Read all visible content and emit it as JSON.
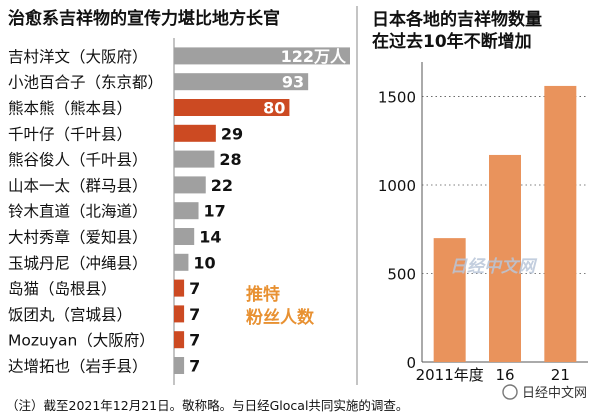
{
  "chart_data": [
    {
      "type": "bar",
      "orientation": "horizontal",
      "title": "治愈系吉祥物的宣传力堪比地方长官",
      "categories": [
        "吉村洋文（大阪府）",
        "小池百合子（东京都）",
        "熊本熊（熊本县）",
        "千叶仔（千叶县）",
        "熊谷俊人（千叶县）",
        "山本一太（群马县）",
        "铃木直道（北海道）",
        "大村秀章（爱知县）",
        "玉城丹尼（冲绳县）",
        "岛猫（岛根县）",
        "饭团丸（宫城县）",
        "Mozuyan（大阪府）",
        "达增拓也（岩手县）"
      ],
      "values": [
        122,
        93,
        80,
        29,
        28,
        22,
        17,
        14,
        10,
        7,
        7,
        7,
        7
      ],
      "value_labels": [
        "122万人",
        "93",
        "80",
        "29",
        "28",
        "22",
        "17",
        "14",
        "10",
        "7",
        "7",
        "7",
        "7"
      ],
      "is_mascot": [
        false,
        false,
        true,
        true,
        false,
        false,
        false,
        false,
        false,
        true,
        true,
        true,
        false
      ],
      "annotation": "推特\n粉丝人数",
      "colors": {
        "governor": "#a0a0a0",
        "mascot": "#cc4a22",
        "annotation": "#e89132"
      }
    },
    {
      "type": "bar",
      "title": "日本各地的吉祥物数量\n在过去10年不断增加",
      "categories": [
        "2011年度",
        "16",
        "21"
      ],
      "values": [
        700,
        1170,
        1560
      ],
      "ylim": [
        0,
        1650
      ],
      "yticks": [
        0,
        500,
        1000,
        1500
      ],
      "grid": true,
      "colors": {
        "bar": "#e9935c"
      }
    }
  ],
  "source_watermark": "日经中文网",
  "credit": "日经中文网",
  "note": "（注）截至2021年12月21日。敬称略。与日经Glocal共同实施的调查。"
}
